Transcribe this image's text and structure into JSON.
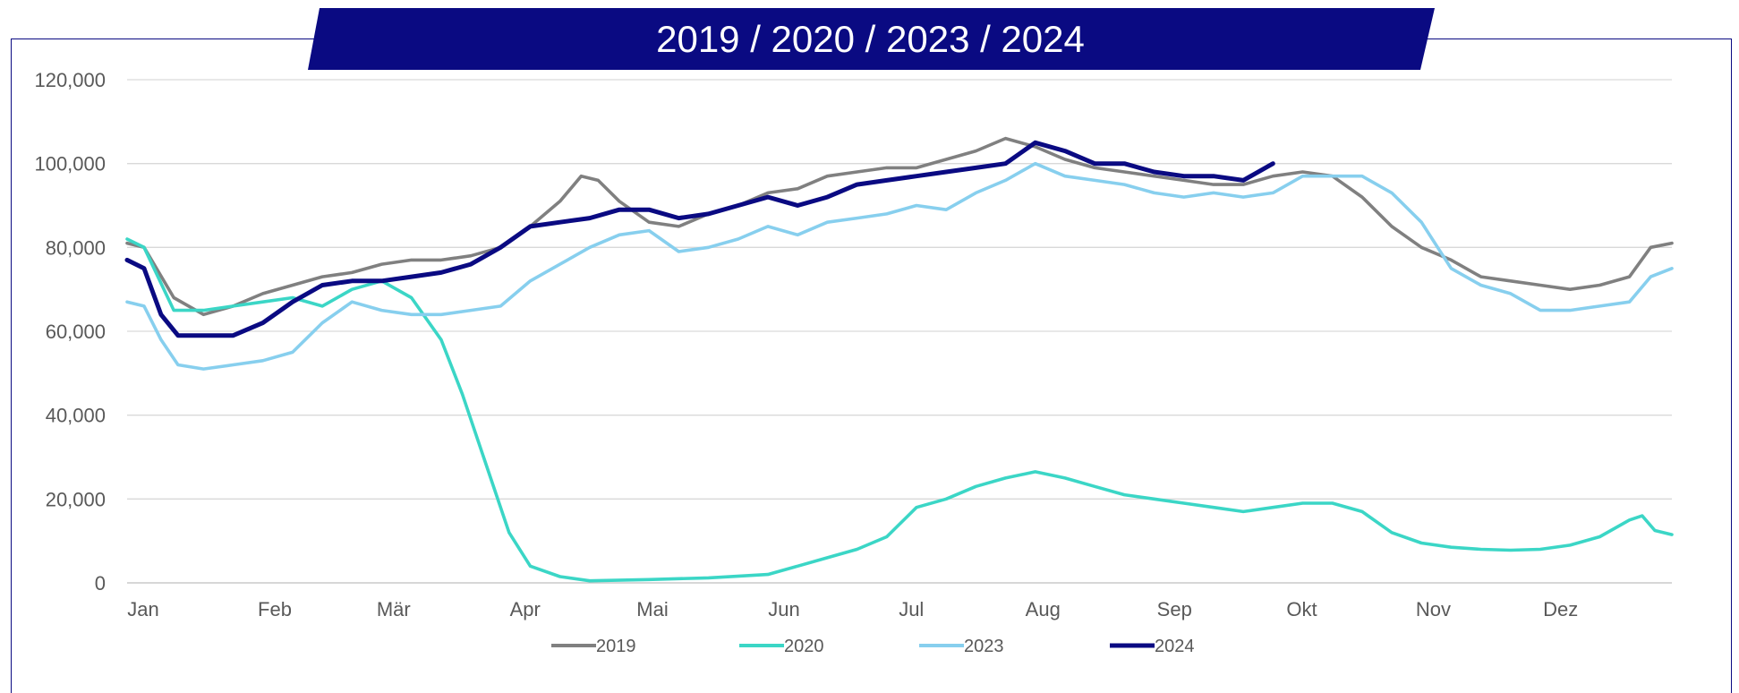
{
  "chart_data": {
    "type": "line",
    "title": "2019 / 2020 / 2023 / 2024",
    "xlabel": "",
    "ylabel": "",
    "ylim": [
      0,
      120000
    ],
    "yticks": [
      "0",
      "20,000",
      "40,000",
      "60,000",
      "80,000",
      "100,000",
      "120,000"
    ],
    "categories": [
      "Jan",
      "Feb",
      "Mär",
      "Apr",
      "Mai",
      "Jun",
      "Jul",
      "Aug",
      "Sep",
      "Okt",
      "Nov",
      "Dez"
    ],
    "x_unit": "day of year",
    "grid": true,
    "legend_position": "bottom",
    "series": [
      {
        "name": "2019",
        "color": "#808080",
        "x": [
          1,
          5,
          12,
          19,
          26,
          33,
          40,
          47,
          54,
          61,
          68,
          75,
          82,
          89,
          96,
          103,
          108,
          112,
          117,
          124,
          131,
          138,
          145,
          152,
          159,
          166,
          173,
          180,
          187,
          194,
          201,
          208,
          215,
          222,
          229,
          236,
          243,
          250,
          257,
          264,
          271,
          278,
          285,
          292,
          299,
          306,
          313,
          320,
          327,
          334,
          341,
          348,
          355,
          360,
          365
        ],
        "y": [
          81000,
          80000,
          68000,
          64000,
          66000,
          69000,
          71000,
          73000,
          74000,
          76000,
          77000,
          77000,
          78000,
          80000,
          85000,
          91000,
          97000,
          96000,
          91000,
          86000,
          85000,
          88000,
          90000,
          93000,
          94000,
          97000,
          98000,
          99000,
          99000,
          101000,
          103000,
          106000,
          104000,
          101000,
          99000,
          98000,
          97000,
          96000,
          95000,
          95000,
          97000,
          98000,
          97000,
          92000,
          85000,
          80000,
          77000,
          73000,
          72000,
          71000,
          70000,
          71000,
          73000,
          80000,
          81000
        ]
      },
      {
        "name": "2020",
        "color": "#3bd6c6",
        "x": [
          1,
          5,
          12,
          19,
          26,
          33,
          40,
          47,
          54,
          61,
          68,
          75,
          80,
          85,
          91,
          96,
          103,
          110,
          124,
          138,
          152,
          159,
          166,
          173,
          180,
          187,
          194,
          201,
          208,
          215,
          222,
          229,
          236,
          243,
          250,
          257,
          264,
          271,
          278,
          285,
          292,
          299,
          306,
          313,
          320,
          327,
          334,
          341,
          348,
          355,
          358,
          361,
          365
        ],
        "y": [
          82000,
          80000,
          65000,
          65000,
          66000,
          67000,
          68000,
          66000,
          70000,
          72000,
          68000,
          58000,
          45000,
          30000,
          12000,
          4000,
          1500,
          500,
          800,
          1200,
          2000,
          4000,
          6000,
          8000,
          11000,
          18000,
          20000,
          23000,
          25000,
          26500,
          25000,
          23000,
          21000,
          20000,
          19000,
          18000,
          17000,
          18000,
          19000,
          19000,
          17000,
          12000,
          9500,
          8500,
          8000,
          7800,
          8000,
          9000,
          11000,
          15000,
          16000,
          12500,
          11500
        ]
      },
      {
        "name": "2023",
        "color": "#87cfee",
        "x": [
          1,
          5,
          9,
          13,
          19,
          26,
          33,
          40,
          47,
          54,
          61,
          68,
          75,
          82,
          89,
          96,
          103,
          110,
          117,
          124,
          131,
          138,
          145,
          152,
          159,
          166,
          173,
          180,
          187,
          194,
          201,
          208,
          215,
          222,
          229,
          236,
          243,
          250,
          257,
          264,
          271,
          278,
          285,
          292,
          299,
          306,
          313,
          320,
          327,
          334,
          341,
          348,
          355,
          360,
          365
        ],
        "y": [
          67000,
          66000,
          58000,
          52000,
          51000,
          52000,
          53000,
          55000,
          62000,
          67000,
          65000,
          64000,
          64000,
          65000,
          66000,
          72000,
          76000,
          80000,
          83000,
          84000,
          79000,
          80000,
          82000,
          85000,
          83000,
          86000,
          87000,
          88000,
          90000,
          89000,
          93000,
          96000,
          100000,
          97000,
          96000,
          95000,
          93000,
          92000,
          93000,
          92000,
          93000,
          97000,
          97000,
          97000,
          93000,
          86000,
          75000,
          71000,
          69000,
          65000,
          65000,
          66000,
          67000,
          73000,
          75000
        ]
      },
      {
        "name": "2024",
        "color": "#0a0a82",
        "x": [
          1,
          5,
          9,
          13,
          19,
          26,
          33,
          40,
          47,
          54,
          61,
          68,
          75,
          82,
          89,
          96,
          103,
          110,
          117,
          124,
          131,
          138,
          145,
          152,
          159,
          166,
          173,
          180,
          187,
          194,
          201,
          208,
          215,
          222,
          229,
          236,
          243,
          250,
          257,
          264,
          271
        ],
        "y": [
          77000,
          75000,
          64000,
          59000,
          59000,
          59000,
          62000,
          67000,
          71000,
          72000,
          72000,
          73000,
          74000,
          76000,
          80000,
          85000,
          86000,
          87000,
          89000,
          89000,
          87000,
          88000,
          90000,
          92000,
          90000,
          92000,
          95000,
          96000,
          97000,
          98000,
          99000,
          100000,
          105000,
          103000,
          100000,
          100000,
          98000,
          97000,
          97000,
          96000,
          100000
        ]
      }
    ]
  }
}
